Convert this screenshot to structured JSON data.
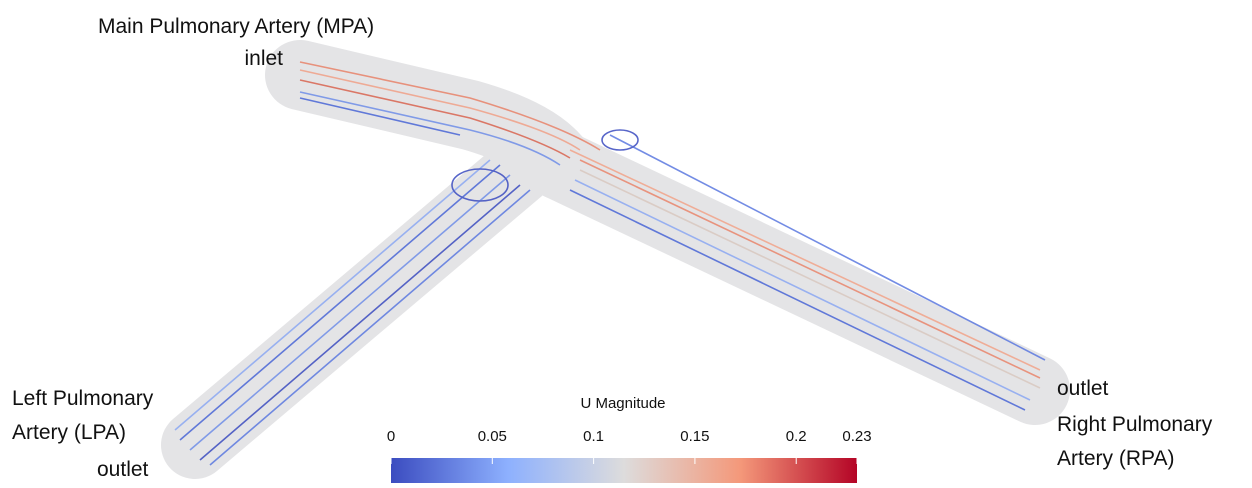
{
  "labels": {
    "mpa": [
      "Main Pulmonary Artery (MPA)",
      "inlet"
    ],
    "lpa": [
      "Left Pulmonary",
      "Artery (LPA)",
      "outlet"
    ],
    "rpa": [
      "outlet",
      "Right Pulmonary",
      "Artery (RPA)"
    ]
  },
  "colorbar": {
    "title": "U Magnitude",
    "range": [
      0,
      0.23
    ],
    "ticks": [
      0,
      0.05,
      0.1,
      0.15,
      0.2,
      0.23
    ]
  }
}
